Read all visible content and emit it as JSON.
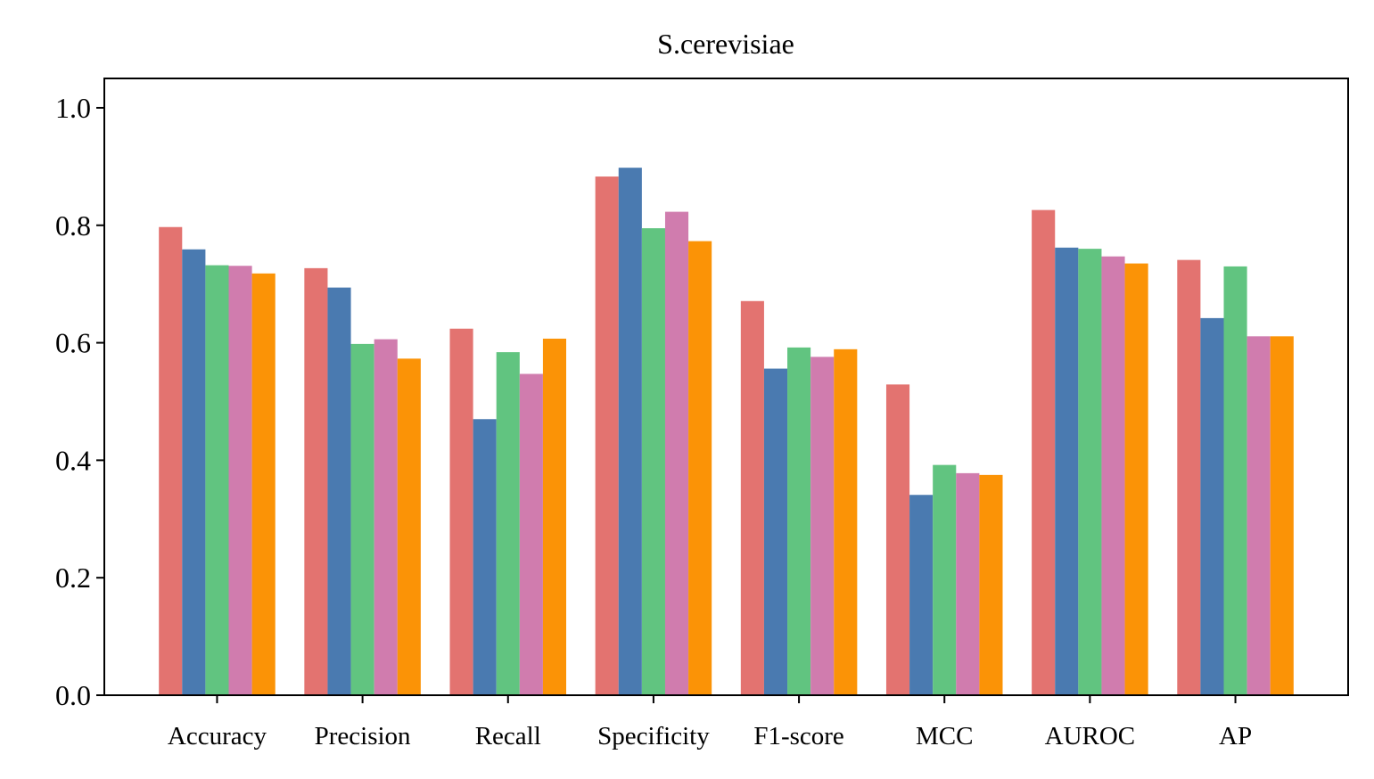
{
  "chart_data": {
    "type": "bar",
    "title": "S.cerevisiae",
    "xlabel": "",
    "ylabel": "",
    "ylim": [
      0,
      1.05
    ],
    "yticks": [
      "0.0",
      "0.2",
      "0.4",
      "0.6",
      "0.8",
      "1.0"
    ],
    "legend": "none",
    "grid": false,
    "categories": [
      "Accuracy",
      "Precision",
      "Recall",
      "Specificity",
      "F1-score",
      "MCC",
      "AUROC",
      "AP"
    ],
    "series": [
      {
        "color": "#E37370",
        "values": [
          0.797,
          0.727,
          0.624,
          0.883,
          0.671,
          0.529,
          0.826,
          0.741
        ]
      },
      {
        "color": "#4A7AB0",
        "values": [
          0.759,
          0.694,
          0.47,
          0.898,
          0.556,
          0.341,
          0.762,
          0.642
        ]
      },
      {
        "color": "#61C480",
        "values": [
          0.732,
          0.598,
          0.584,
          0.795,
          0.592,
          0.392,
          0.76,
          0.73
        ]
      },
      {
        "color": "#D07CAE",
        "values": [
          0.731,
          0.606,
          0.547,
          0.823,
          0.576,
          0.378,
          0.747,
          0.611
        ]
      },
      {
        "color": "#FB9306",
        "values": [
          0.718,
          0.573,
          0.607,
          0.773,
          0.589,
          0.375,
          0.735,
          0.611
        ]
      }
    ]
  }
}
